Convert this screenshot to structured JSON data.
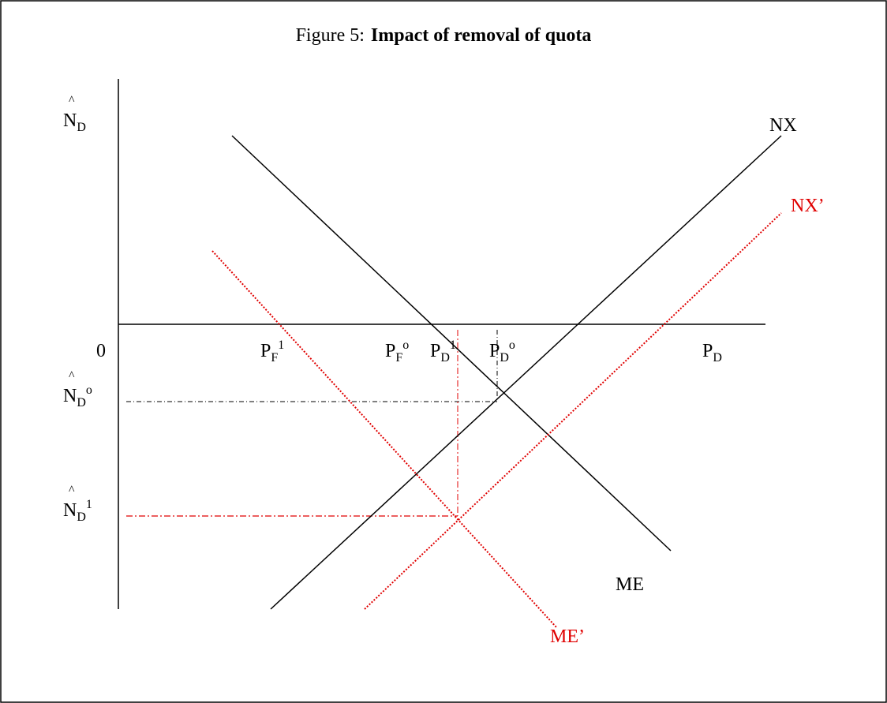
{
  "title": {
    "prefix": "Figure 5:",
    "bold": "Impact of removal of quota"
  },
  "axis_labels": {
    "y": {
      "hat": "^",
      "base": "N",
      "sub": "D"
    },
    "origin": "0",
    "x": {
      "base": "P",
      "sub": "D"
    }
  },
  "price_labels": [
    {
      "base": "P",
      "sub": "F",
      "sup": "1"
    },
    {
      "base": "P",
      "sub": "F",
      "sup": "o"
    },
    {
      "base": "P",
      "sub": "D",
      "sup": "1"
    },
    {
      "base": "P",
      "sub": "D",
      "sup": "o"
    }
  ],
  "quantity_labels": [
    {
      "hat": "^",
      "base": "N",
      "sub": "D",
      "sup": "o"
    },
    {
      "hat": "^",
      "base": "N",
      "sub": "D",
      "sup": "1"
    }
  ],
  "curve_labels": {
    "nx": "NX",
    "nx_prime": "NX’",
    "me": "ME",
    "me_prime": "ME’"
  }
}
